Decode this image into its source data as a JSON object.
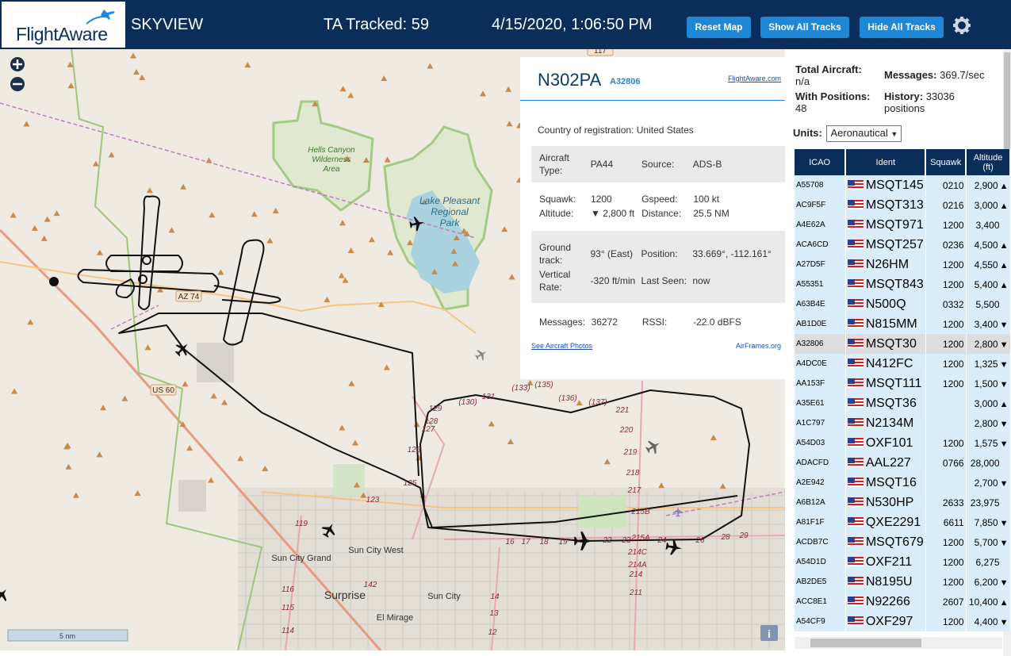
{
  "header": {
    "logo": "FlightAware",
    "app": "SKYVIEW",
    "tracked": "TA Tracked: 59",
    "datetime": "4/15/2020, 1:06:50 PM",
    "buttons": [
      "Reset Map",
      "Show All Tracks",
      "Hide All Tracks"
    ]
  },
  "map": {
    "labels": [
      "Hells Canyon",
      "Wilderness",
      "Area",
      "Lake Pleasant",
      "Regional",
      "Park",
      "AZ 74",
      "US 60",
      "117",
      "Sun City West",
      "Sun City Grand",
      "Surprise",
      "Sun City",
      "El Mirage",
      "123",
      "125",
      "126",
      "127",
      "128",
      "129",
      "(130)",
      "131",
      "(133)",
      "(135)",
      "(136)",
      "(137)",
      "221",
      "220",
      "219",
      "218",
      "217",
      "215B",
      "215A",
      "214C",
      "214A",
      "214",
      "211",
      "119",
      "116",
      "115",
      "114",
      "142",
      "16",
      "17",
      "18",
      "19",
      "22",
      "23",
      "24",
      "26",
      "28",
      "29",
      "14",
      "13",
      "12"
    ],
    "scale": "5 nm",
    "info_button": "i"
  },
  "info": {
    "callsign": "N302PA",
    "hex": "A32806",
    "link": "FlightAware.com",
    "country_label": "Country of registration:",
    "country": "United States",
    "sections": [
      [
        [
          "Aircraft Type:",
          "PA44",
          "Source:",
          "ADS-B"
        ]
      ],
      [
        [
          "Squawk:",
          "1200",
          "Gspeed:",
          "100 kt"
        ],
        [
          "Altitude:",
          "▼ 2,800 ft",
          "Distance:",
          "25.5 NM"
        ]
      ],
      [
        [
          "Ground track:",
          "93° (East)",
          "Position:",
          "33.669°, -112.161°"
        ],
        [
          "Vertical Rate:",
          "-320 ft/min",
          "Last Seen:",
          "now"
        ]
      ],
      [
        [
          "Messages:",
          "36272",
          "RSSI:",
          "-22.0 dBFS"
        ]
      ]
    ],
    "photos": "See Aircraft Photos",
    "airframes": "AirFrames.org"
  },
  "stats": {
    "total_label": "Total Aircraft:",
    "total": "n/a",
    "messages_label": "Messages:",
    "messages": "369.7/sec",
    "positions_label": "With Positions:",
    "positions": "48",
    "history_label": "History:",
    "history": "33036 positions",
    "units_label": "Units:",
    "units": "Aeronautical"
  },
  "table": {
    "columns": [
      "ICAO",
      "Ident",
      "Squawk",
      "Altitude (ft)"
    ],
    "rows": [
      [
        "A55708",
        "MSQT145",
        "0210",
        "2,900",
        "▲"
      ],
      [
        "AC9F5F",
        "MSQT313",
        "0216",
        "3,000",
        "▲"
      ],
      [
        "A4E62A",
        "MSQT971",
        "1200",
        "3,400",
        null
      ],
      [
        "ACA6CD",
        "MSQT257",
        "0236",
        "4,500",
        "▲"
      ],
      [
        "A27D5F",
        "N26HM",
        "1200",
        "4,550",
        "▲"
      ],
      [
        "A55351",
        "MSQT843",
        "1200",
        "5,400",
        "▲"
      ],
      [
        "A63B4E",
        "N500Q",
        "0332",
        "5,500",
        null
      ],
      [
        "AB1D0E",
        "N815MM",
        "1200",
        "3,400",
        "▼"
      ],
      [
        "A32806",
        "MSQT30",
        "1200",
        "2,800",
        "▼"
      ],
      [
        "A4DC0E",
        "N412FC",
        "1200",
        "1,325",
        "▼"
      ],
      [
        "AA153F",
        "MSQT111",
        "1200",
        "1,500",
        "▼"
      ],
      [
        "A35E61",
        "MSQT36",
        null,
        "3,000",
        "▲"
      ],
      [
        "A1C797",
        "N2134M",
        null,
        "2,800",
        "▼"
      ],
      [
        "A54D03",
        "OXF101",
        "1200",
        "1,575",
        "▼"
      ],
      [
        "ADACFD",
        "AAL227",
        "0766",
        "28,000",
        null
      ],
      [
        "A2E942",
        "MSQT16",
        null,
        "2,700",
        "▼"
      ],
      [
        "A6B12A",
        "N530HP",
        "2633",
        "23,975",
        null
      ],
      [
        "A81F1F",
        "QXE2291",
        "6611",
        "7,850",
        "▼"
      ],
      [
        "ACDB7C",
        "MSQT679",
        "1200",
        "5,700",
        "▼"
      ],
      [
        "A54D1D",
        "OXF211",
        "1200",
        "6,275",
        null
      ],
      [
        "AB2DE5",
        "N8195U",
        "1200",
        "6,200",
        "▼"
      ],
      [
        "ACC8E1",
        "N92266",
        "2607",
        "10,400",
        "▲"
      ],
      [
        "A54CF9",
        "OXF297",
        "1200",
        "4,400",
        "▼"
      ]
    ]
  }
}
